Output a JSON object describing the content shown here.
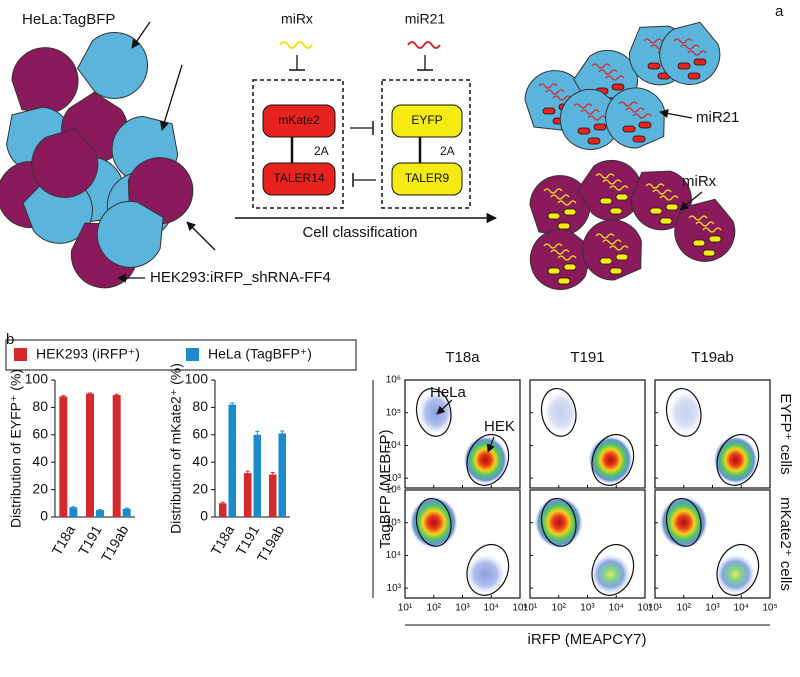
{
  "panels": {
    "a": "a",
    "b": "b"
  },
  "diagram": {
    "hela_label": "HeLa:TagBFP",
    "hek_label": "HEK293:iRFP_shRNA-FF4",
    "mirx": "miRx",
    "mir21": "miR21",
    "box1": {
      "top": "mKate2",
      "link": "2A",
      "bottom": "TALER14"
    },
    "box2": {
      "top": "EYFP",
      "link": "2A",
      "bottom": "TALER9"
    },
    "arrow_label": "Cell classification",
    "result_mir21": "miR21",
    "result_mirx": "miRx"
  },
  "chart_data": [
    {
      "type": "bar",
      "ylabel": "Distribution of EYFP⁺ (%)",
      "categories": [
        "T18a",
        "T191",
        "T19ab"
      ],
      "series": [
        {
          "name": "HEK293 (iRFP⁺)",
          "color": "#d42a2e",
          "values": [
            88,
            90,
            89
          ],
          "errors": [
            0.6,
            0.5,
            0.6
          ]
        },
        {
          "name": "HeLa (TagBFP⁺)",
          "color": "#1b8ccb",
          "values": [
            7,
            5,
            6
          ],
          "errors": [
            0.5,
            0.4,
            0.5
          ]
        }
      ],
      "ylim": [
        0,
        100
      ],
      "yticks": [
        0,
        20,
        40,
        60,
        80,
        100
      ]
    },
    {
      "type": "bar",
      "ylabel": "Distribution of mKate2⁺ (%)",
      "categories": [
        "T18a",
        "T191",
        "T19ab"
      ],
      "series": [
        {
          "color": "#d42a2e",
          "values": [
            10,
            32,
            31
          ],
          "errors": [
            0.8,
            1.5,
            1.5
          ]
        },
        {
          "color": "#1b8ccb",
          "values": [
            82,
            60,
            61
          ],
          "errors": [
            1.2,
            2.5,
            1.8
          ]
        }
      ],
      "ylim": [
        0,
        100
      ],
      "yticks": [
        0,
        20,
        40,
        60,
        80,
        100
      ]
    }
  ],
  "flow": {
    "columns": [
      "T18a",
      "T191",
      "T19ab"
    ],
    "rows": [
      "EYFP⁺ cells",
      "mKate2⁺ cells"
    ],
    "xlabel": "iRFP (MEAPCY7)",
    "ylabel": "TagBFP (MEBFP)",
    "gate_labels": [
      "HeLa",
      "HEK"
    ],
    "xlim": [
      10,
      100000
    ],
    "ylim": [
      500,
      1000000
    ],
    "xticks": [
      {
        "value": 10,
        "label": "10¹"
      },
      {
        "value": 100,
        "label": "10²"
      },
      {
        "value": 1000,
        "label": "10³"
      },
      {
        "value": 10000,
        "label": "10⁴"
      },
      {
        "value": 100000,
        "label": "10⁵"
      }
    ],
    "yticks": [
      {
        "value": 1000,
        "label": "10³"
      },
      {
        "value": 10000,
        "label": "10⁴"
      },
      {
        "value": 100000,
        "label": "10⁵"
      },
      {
        "value": 1000000,
        "label": "10⁶"
      }
    ]
  }
}
